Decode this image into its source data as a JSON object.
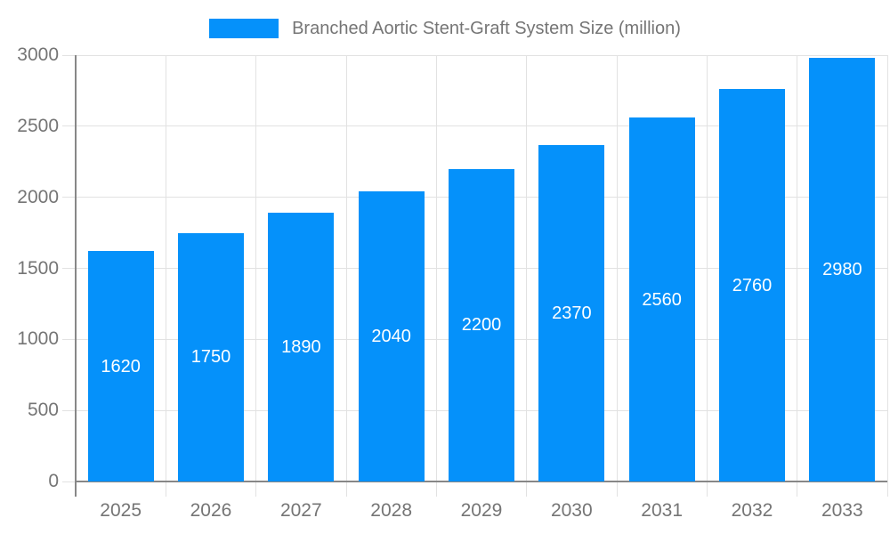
{
  "chart_data": {
    "type": "bar",
    "title": "Branched Aortic Stent-Graft System Size (million)",
    "categories": [
      "2025",
      "2026",
      "2027",
      "2028",
      "2029",
      "2030",
      "2031",
      "2032",
      "2033"
    ],
    "values": [
      1620,
      1750,
      1890,
      2040,
      2200,
      2370,
      2560,
      2760,
      2980
    ],
    "xlabel": "",
    "ylabel": "",
    "ylim": [
      0,
      3000
    ],
    "ytick_step": 500,
    "yticks": [
      0,
      500,
      1000,
      1500,
      2000,
      2500,
      3000
    ],
    "grid": true,
    "legend_position": "top",
    "bar_labels_visible": true,
    "colors": {
      "bar": "#0591fa",
      "bar_label": "#ffffff",
      "axis_text": "#757575",
      "grid_line": "#e2e2e2",
      "axis_line": "#878787"
    }
  }
}
